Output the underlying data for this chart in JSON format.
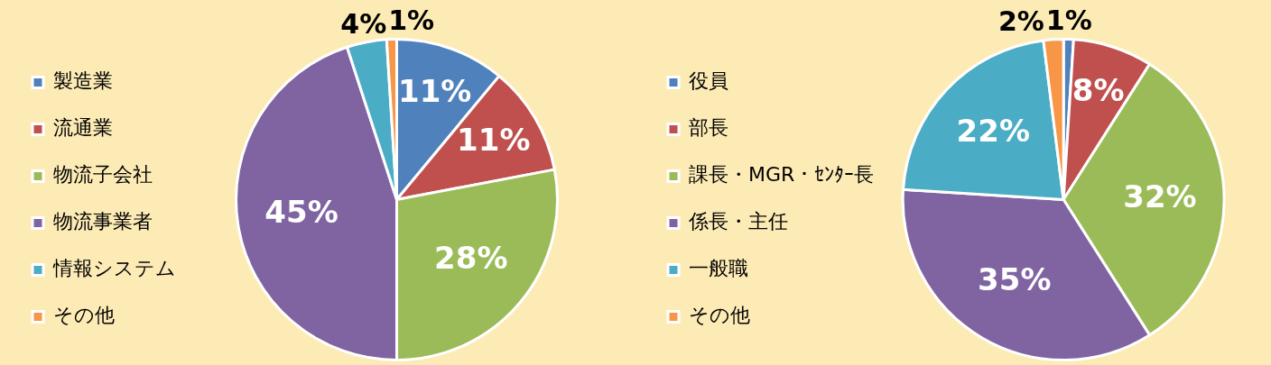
{
  "chart_data": [
    {
      "type": "pie",
      "categories": [
        "製造業",
        "流通業",
        "物流子会社",
        "物流事業者",
        "情報システム",
        "その他"
      ],
      "values": [
        11,
        11,
        28,
        45,
        4,
        1
      ],
      "value_labels": [
        "11%",
        "11%",
        "28%",
        "45%",
        "4%",
        "1%"
      ],
      "colors": [
        "#4f81bd",
        "#c0504d",
        "#9bbb59",
        "#8064a2",
        "#4bacc6",
        "#f79646"
      ],
      "legend": "left"
    },
    {
      "type": "pie",
      "categories": [
        "役員",
        "部長",
        "課長・MGR・ｾﾝﾀｰ長",
        "係長・主任",
        "一般職",
        "その他"
      ],
      "values": [
        1,
        8,
        32,
        35,
        22,
        2
      ],
      "value_labels": [
        "1%",
        "8%",
        "32%",
        "35%",
        "22%",
        "2%"
      ],
      "colors": [
        "#4f81bd",
        "#c0504d",
        "#9bbb59",
        "#8064a2",
        "#4bacc6",
        "#f79646"
      ],
      "legend": "left"
    }
  ]
}
